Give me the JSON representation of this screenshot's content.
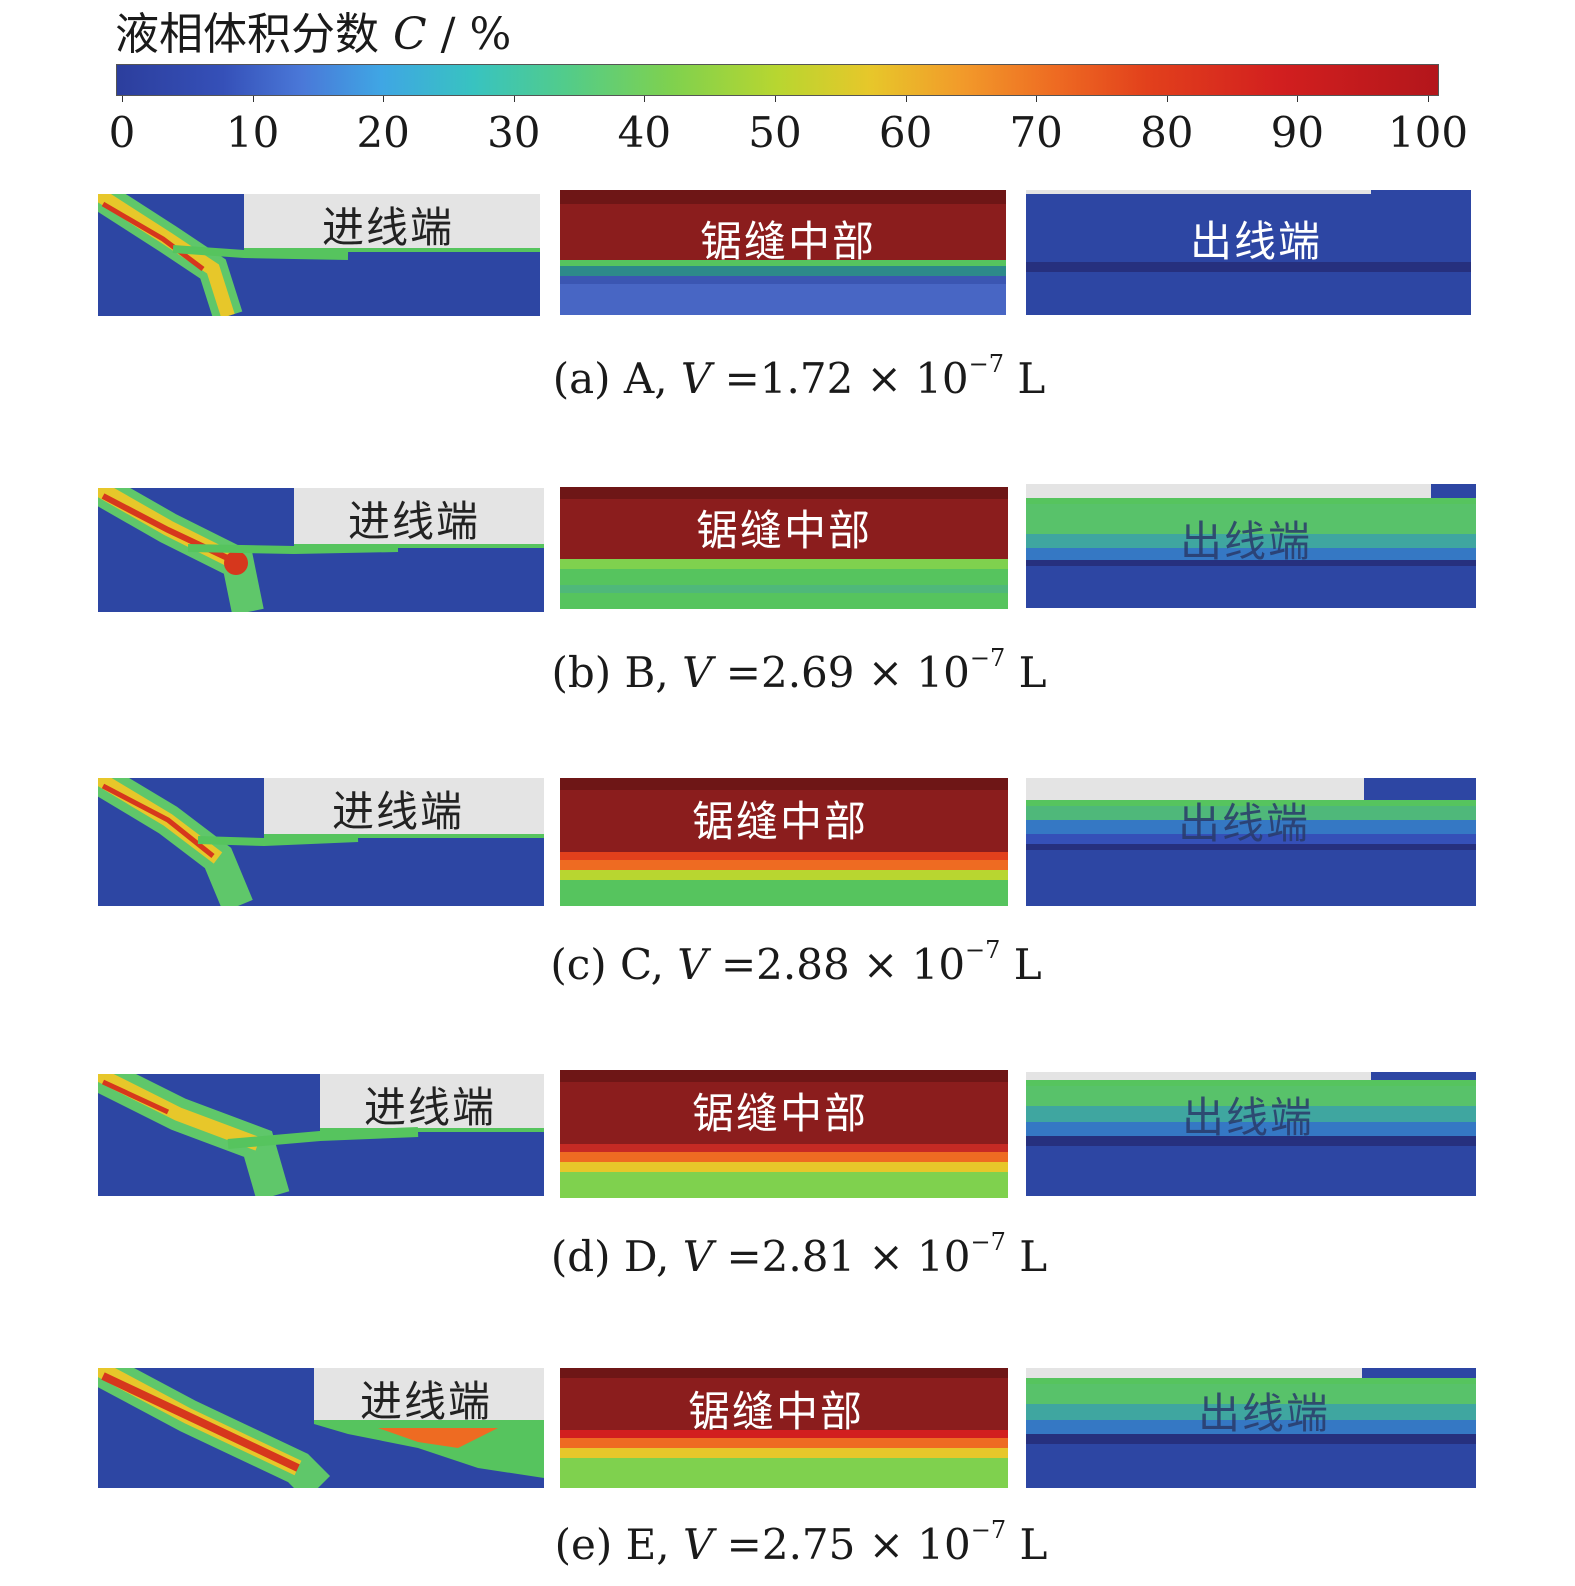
{
  "colorbar": {
    "title_text": "液相体积分数 ",
    "title_var": "C",
    "title_unit": " / %",
    "ticks": [
      "0",
      "10",
      "20",
      "30",
      "40",
      "50",
      "60",
      "70",
      "80",
      "90",
      "100"
    ]
  },
  "panel_labels": {
    "inlet": "进线端",
    "middle": "锯缝中部",
    "outlet": "出线端"
  },
  "rows": [
    {
      "caption_prefix": "(a) A, ",
      "caption_var": "V",
      "caption_eq": " =1.72 × 10",
      "caption_exp": "−7",
      "caption_unit": " L"
    },
    {
      "caption_prefix": "(b) B, ",
      "caption_var": "V",
      "caption_eq": " =2.69 × 10",
      "caption_exp": "−7",
      "caption_unit": " L"
    },
    {
      "caption_prefix": "(c) C, ",
      "caption_var": "V",
      "caption_eq": " =2.88 × 10",
      "caption_exp": "−7",
      "caption_unit": " L"
    },
    {
      "caption_prefix": "(d) D, ",
      "caption_var": "V",
      "caption_eq": " =2.81 × 10",
      "caption_exp": "−7",
      "caption_unit": " L"
    },
    {
      "caption_prefix": "(e) E, ",
      "caption_var": "V",
      "caption_eq": " =2.75 × 10",
      "caption_exp": "−7",
      "caption_unit": " L"
    }
  ],
  "colors": {
    "blue": "#2d46a3",
    "dark_red": "#8b1d1d",
    "red": "#c62a24",
    "green": "#56c45e",
    "grey": "#e4e4e4"
  }
}
